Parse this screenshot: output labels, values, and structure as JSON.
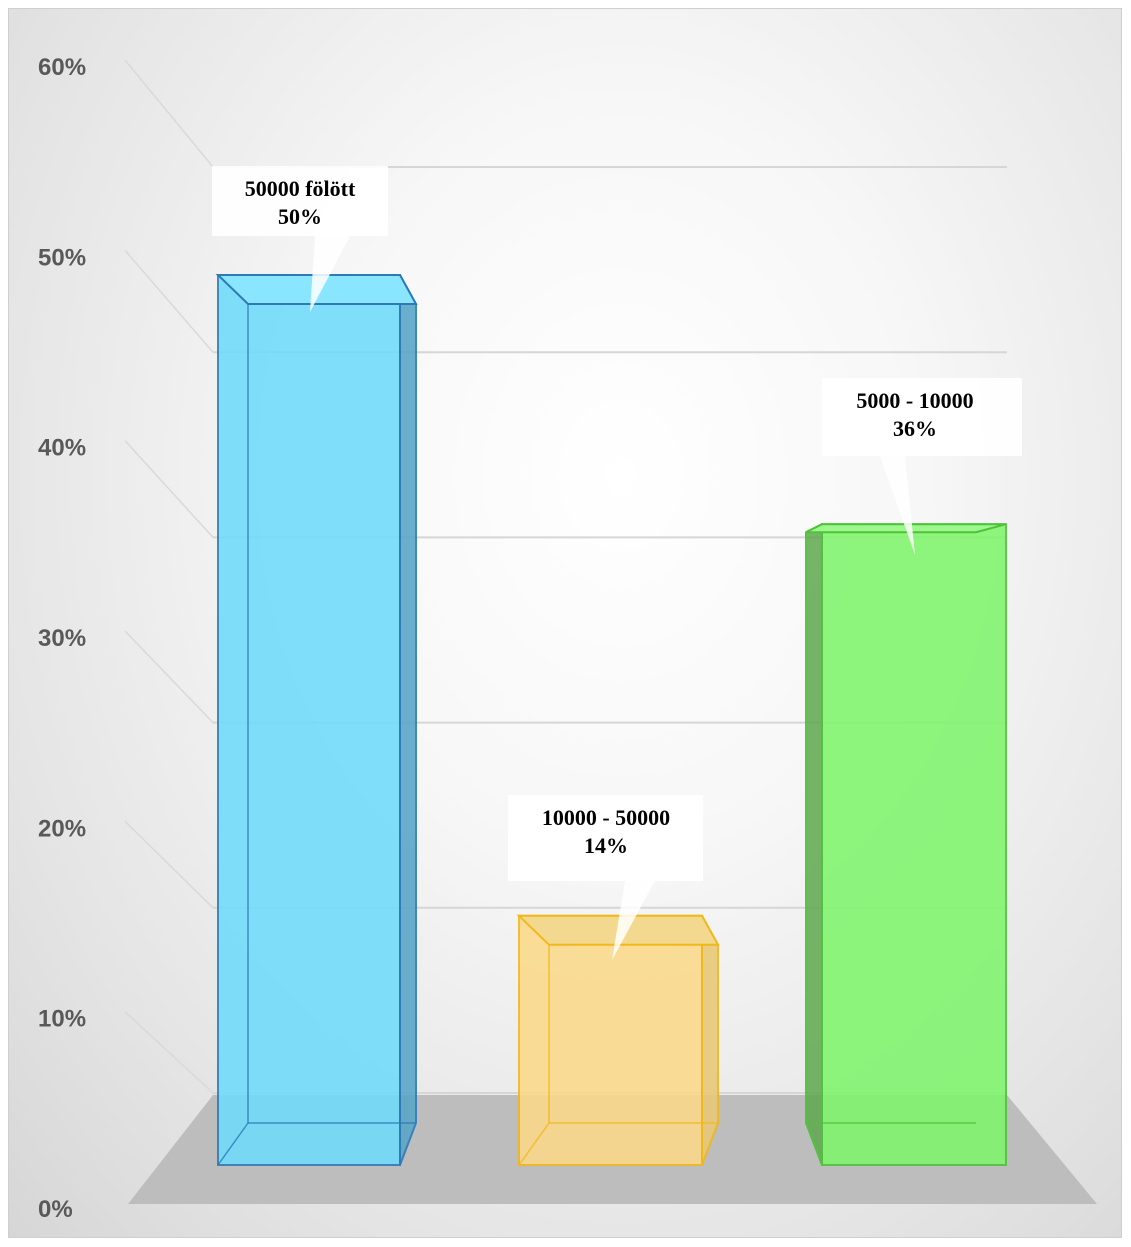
{
  "chart_data": {
    "type": "bar",
    "title": "",
    "xlabel": "",
    "ylabel": "",
    "ylim": [
      0,
      60
    ],
    "y_ticks": [
      "0%",
      "10%",
      "20%",
      "30%",
      "40%",
      "50%",
      "60%"
    ],
    "grid": true,
    "legend": "none",
    "style": "3d-column",
    "categories": [
      "50000 fölött",
      "10000 - 50000",
      "5000 - 10000"
    ],
    "values": [
      50,
      14,
      36
    ],
    "data_labels": [
      {
        "category": "50000 fölött",
        "value": "50%"
      },
      {
        "category": "10000 - 50000",
        "value": "14%"
      },
      {
        "category": "5000 - 10000",
        "value": "36%"
      }
    ],
    "colors": [
      "#6fdcfb",
      "#fbd98a",
      "#7ff56c"
    ],
    "edge_colors": [
      "#2e7ab8",
      "#f1b81a",
      "#4fc23a"
    ],
    "floor_color": "#bdbdbd"
  }
}
